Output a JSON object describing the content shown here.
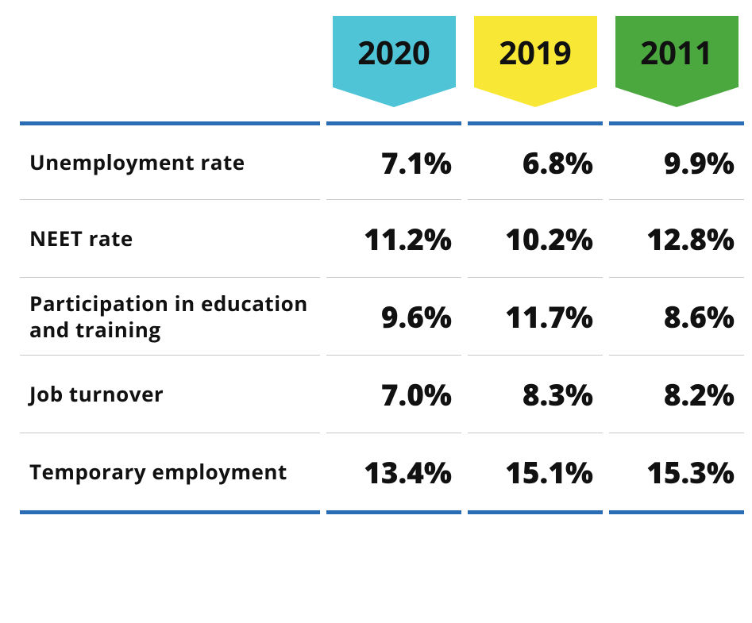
{
  "type": "table",
  "background_color": "#ffffff",
  "border_color": "#2a6db5",
  "divider_color": "#c8c8c8",
  "text_color": "#111111",
  "label_fontsize": 26,
  "value_fontsize": 37,
  "year_fontsize": 40,
  "years": [
    {
      "label": "2020",
      "color": "#4fc4d6"
    },
    {
      "label": "2019",
      "color": "#f9e735"
    },
    {
      "label": "2011",
      "color": "#4aa83f"
    }
  ],
  "rows": [
    {
      "label": "Unemployment rate",
      "values": [
        "7.1%",
        "6.8%",
        "9.9%"
      ]
    },
    {
      "label": "NEET rate",
      "values": [
        "11.2%",
        "10.2%",
        "12.8%"
      ]
    },
    {
      "label": "Participation in education and training",
      "values": [
        "9.6%",
        "11.7%",
        "8.6%"
      ]
    },
    {
      "label": "Job turnover",
      "values": [
        "7.0%",
        "8.3%",
        "8.2%"
      ]
    },
    {
      "label": "Temporary employment",
      "values": [
        "13.4%",
        "15.1%",
        "15.3%"
      ]
    }
  ]
}
